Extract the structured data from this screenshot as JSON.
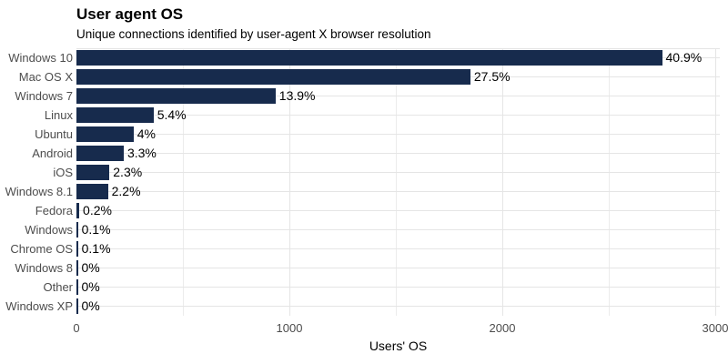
{
  "chart_data": {
    "type": "bar",
    "orientation": "horizontal",
    "title": "User agent OS",
    "subtitle": "Unique connections identified by user-agent X browser resolution",
    "xlabel": "Users' OS",
    "ylabel": "",
    "categories": [
      "Windows 10",
      "Mac OS X",
      "Windows 7",
      "Linux",
      "Ubuntu",
      "Android",
      "iOS",
      "Windows 8.1",
      "Fedora",
      "Windows",
      "Chrome OS",
      "Windows 8",
      "Other",
      "Windows XP"
    ],
    "values": [
      2750,
      1850,
      935,
      362,
      268,
      222,
      155,
      148,
      13,
      7,
      7,
      2,
      1,
      1
    ],
    "percent_labels": [
      "40.9%",
      "27.5%",
      "13.9%",
      "5.4%",
      "4%",
      "3.3%",
      "2.3%",
      "2.2%",
      "0.2%",
      "0.1%",
      "0.1%",
      "0%",
      "0%",
      "0%"
    ],
    "xlim": [
      0,
      3000
    ],
    "x_ticks": [
      0,
      1000,
      2000,
      3000
    ],
    "x_tick_labels": [
      "0",
      "1000",
      "2000",
      "3000"
    ],
    "minor_x_ticks": [
      500,
      1500,
      2500
    ],
    "grid": true,
    "legend": false,
    "colors": {
      "bar": "#172b4d",
      "grid_major": "#e5e5e5",
      "grid_minor": "#ececec",
      "axis_text": "#4d4d4d",
      "value_label": "#000000",
      "title_text": "#000000",
      "background": "#ffffff"
    }
  }
}
